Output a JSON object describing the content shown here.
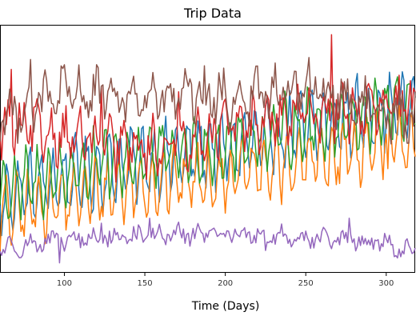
{
  "chart_data": {
    "type": "line",
    "title": "Trip Data",
    "xlabel": "Time (Days)",
    "ylabel": "",
    "xlim": [
      60,
      318
    ],
    "ylim": [
      0,
      100
    ],
    "x_ticks": [
      100,
      150,
      200,
      250,
      300
    ],
    "x_tick_labels": [
      "100",
      "150",
      "200",
      "250",
      "300"
    ],
    "grid": false,
    "legend": "none",
    "series": [
      {
        "color": "#1f77b4",
        "anchors": [
          [
            60,
            30
          ],
          [
            100,
            38
          ],
          [
            150,
            45
          ],
          [
            200,
            50
          ],
          [
            250,
            58
          ],
          [
            300,
            66
          ],
          [
            318,
            68
          ]
        ],
        "noise": 6,
        "amp": 12,
        "period": 7,
        "phase": 0.0,
        "offset": 0.0,
        "spikes": [
          [
            309,
            73
          ]
        ]
      },
      {
        "color": "#ff7f0e",
        "anchors": [
          [
            60,
            27
          ],
          [
            100,
            33
          ],
          [
            150,
            39
          ],
          [
            200,
            42
          ],
          [
            250,
            48
          ],
          [
            300,
            55
          ],
          [
            318,
            57
          ]
        ],
        "noise": 6,
        "amp": 11,
        "period": 7,
        "phase": 1.2,
        "offset": -3.0,
        "spikes": [
          [
            301,
            42
          ]
        ]
      },
      {
        "color": "#2ca02c",
        "anchors": [
          [
            60,
            31
          ],
          [
            100,
            39
          ],
          [
            150,
            46
          ],
          [
            200,
            50
          ],
          [
            250,
            58
          ],
          [
            300,
            64
          ],
          [
            318,
            66
          ]
        ],
        "noise": 6,
        "amp": 11,
        "period": 7,
        "phase": 2.3,
        "offset": 1.0,
        "spikes": [
          [
            305,
            74
          ]
        ]
      },
      {
        "color": "#d62728",
        "anchors": [
          [
            60,
            58
          ],
          [
            100,
            56
          ],
          [
            120,
            52
          ],
          [
            150,
            50
          ],
          [
            200,
            58
          ],
          [
            250,
            64
          ],
          [
            300,
            66
          ],
          [
            318,
            67
          ]
        ],
        "noise": 8,
        "amp": 7,
        "period": 9,
        "phase": 0.5,
        "offset": 0.0,
        "spikes": [
          [
            67,
            82
          ],
          [
            91,
            59
          ],
          [
            123,
            75
          ],
          [
            171,
            73
          ],
          [
            266,
            96
          ]
        ]
      },
      {
        "color": "#8c564b",
        "anchors": [
          [
            60,
            63
          ],
          [
            100,
            72
          ],
          [
            150,
            70
          ],
          [
            200,
            70
          ],
          [
            250,
            74
          ],
          [
            300,
            66
          ],
          [
            318,
            60
          ]
        ],
        "noise": 8,
        "amp": 6,
        "period": 11,
        "phase": 1.7,
        "offset": 0.0,
        "spikes": [
          [
            79,
            86
          ],
          [
            118,
            80
          ]
        ]
      },
      {
        "color": "#9467bd",
        "anchors": [
          [
            60,
            10
          ],
          [
            100,
            13
          ],
          [
            150,
            15
          ],
          [
            200,
            16
          ],
          [
            250,
            14
          ],
          [
            300,
            12
          ],
          [
            318,
            8
          ]
        ],
        "noise": 3.2,
        "amp": 2,
        "period": 13,
        "phase": 0.9,
        "offset": 0.0,
        "spikes": [
          [
            97,
            4
          ],
          [
            123,
            20
          ],
          [
            153,
            22
          ],
          [
            225,
            9
          ],
          [
            277,
            22
          ],
          [
            307,
            6
          ]
        ]
      }
    ]
  }
}
